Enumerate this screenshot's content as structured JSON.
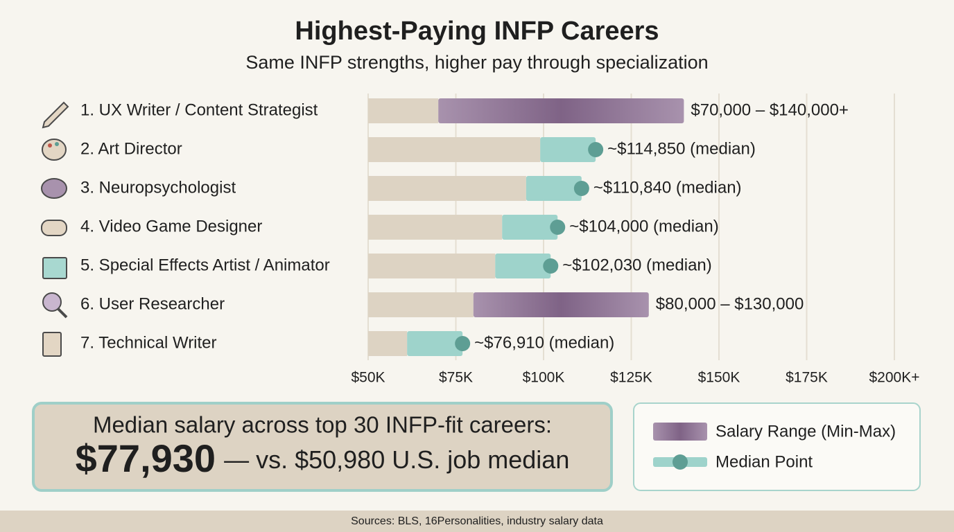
{
  "chart_data": {
    "type": "range-median-bar",
    "title": "Highest-Paying INFP Careers",
    "subtitle": "Same INFP strengths, higher pay through specialization",
    "categories": [
      "1. UX Writer / Content Strategist",
      "2. Art Director",
      "3. Neuropsychologist",
      "4. Video Game Designer",
      "5. Special Effects Artist / Animator",
      "6. User Researcher",
      "7. Technical Writer"
    ],
    "series": [
      {
        "name": "Salary Range (Min-Max)",
        "color": "#7f6386",
        "values": [
          [
            70000,
            140000
          ],
          null,
          null,
          null,
          null,
          [
            80000,
            130000
          ],
          null
        ],
        "value_labels": [
          "$70,000 – $140,000+",
          null,
          null,
          null,
          null,
          "$80,000 – $130,000",
          null
        ]
      },
      {
        "name": "Median Point",
        "color": "#5e9e94",
        "values": [
          null,
          114850,
          110840,
          104000,
          102030,
          null,
          76910
        ],
        "value_labels": [
          null,
          "~$114,850 (median)",
          "~$110,840 (median)",
          "~$104,000 (median)",
          "~$102,030 (median)",
          null,
          "~$76,910 (median)"
        ]
      }
    ],
    "xlim": [
      50000,
      200000
    ],
    "xticks": [
      {
        "value": 50000,
        "label": "$50K"
      },
      {
        "value": 75000,
        "label": "$75K"
      },
      {
        "value": 100000,
        "label": "$100K"
      },
      {
        "value": 125000,
        "label": "$125K"
      },
      {
        "value": 150000,
        "label": "$150K"
      },
      {
        "value": 175000,
        "label": "$175K"
      },
      {
        "value": 200000,
        "label": "$200K+"
      }
    ],
    "grid": true
  },
  "summary": {
    "line1": "Median salary across top 30 INFP-fit careers:",
    "value": "$77,930",
    "comparison": "— vs. $50,980 U.S. job median"
  },
  "footer": "Sources: BLS, 16Personalities, industry salary data"
}
